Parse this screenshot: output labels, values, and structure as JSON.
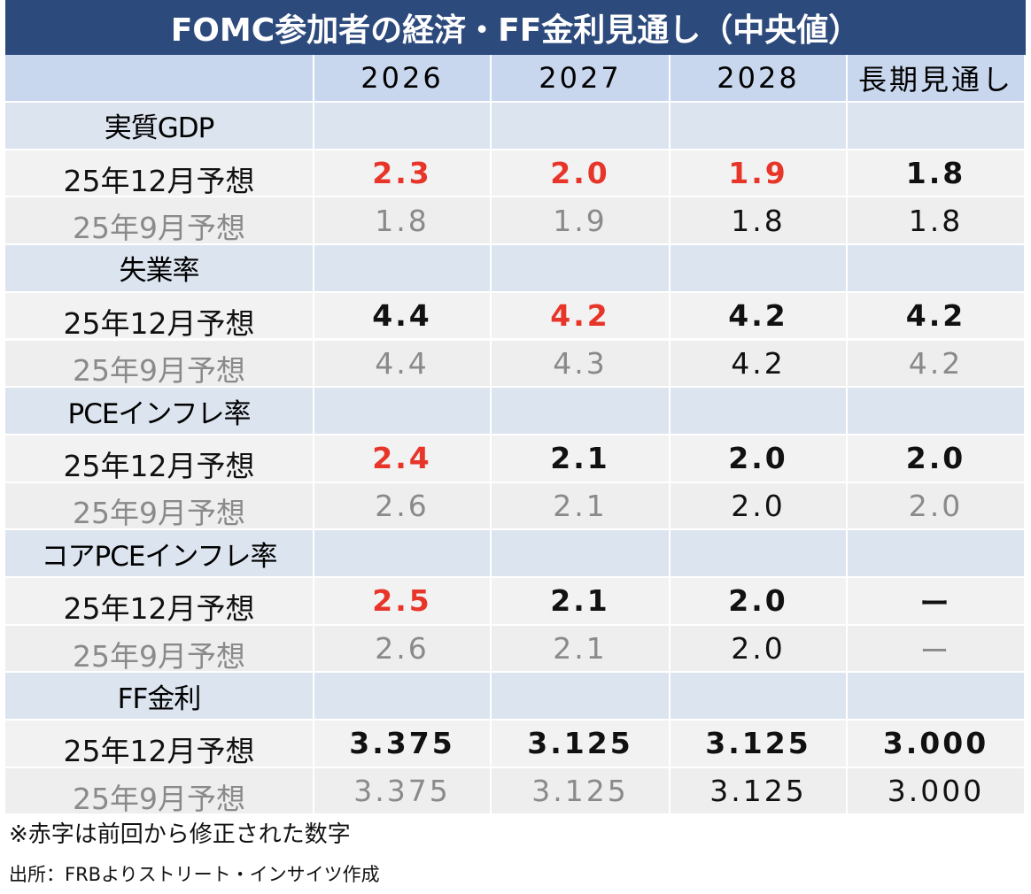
{
  "title": "FOMC参加者の経済・FF金利見通し（中央値）",
  "table": {
    "header": [
      "2026",
      "2027",
      "2028",
      "長期見通し"
    ],
    "sections": [
      {
        "name": "実質GDP",
        "rows": [
          {
            "label": "25年12月予想",
            "label_color": "#111111",
            "bold": true,
            "values": [
              "2.3",
              "2.0",
              "1.9",
              "1.8"
            ],
            "colors": [
              "#e8352a",
              "#e8352a",
              "#e8352a",
              "#111111"
            ]
          },
          {
            "label": "25年9月予想",
            "label_color": "#8a8a8a",
            "bold": false,
            "values": [
              "1.8",
              "1.9",
              "1.8",
              "1.8"
            ],
            "colors": [
              "#8a8a8a",
              "#8a8a8a",
              "#111111",
              "#111111"
            ]
          }
        ]
      },
      {
        "name": "失業率",
        "rows": [
          {
            "label": "25年12月予想",
            "label_color": "#111111",
            "bold": true,
            "values": [
              "4.4",
              "4.2",
              "4.2",
              "4.2"
            ],
            "colors": [
              "#111111",
              "#e8352a",
              "#111111",
              "#111111"
            ]
          },
          {
            "label": "25年9月予想",
            "label_color": "#8a8a8a",
            "bold": false,
            "values": [
              "4.4",
              "4.3",
              "4.2",
              "4.2"
            ],
            "colors": [
              "#8a8a8a",
              "#8a8a8a",
              "#111111",
              "#8a8a8a"
            ]
          }
        ]
      },
      {
        "name": "PCEインフレ率",
        "rows": [
          {
            "label": "25年12月予想",
            "label_color": "#111111",
            "bold": true,
            "values": [
              "2.4",
              "2.1",
              "2.0",
              "2.0"
            ],
            "colors": [
              "#e8352a",
              "#111111",
              "#111111",
              "#111111"
            ]
          },
          {
            "label": "25年9月予想",
            "label_color": "#8a8a8a",
            "bold": false,
            "values": [
              "2.6",
              "2.1",
              "2.0",
              "2.0"
            ],
            "colors": [
              "#8a8a8a",
              "#8a8a8a",
              "#111111",
              "#8a8a8a"
            ]
          }
        ]
      },
      {
        "name": "コアPCEインフレ率",
        "rows": [
          {
            "label": "25年12月予想",
            "label_color": "#111111",
            "bold": true,
            "values": [
              "2.5",
              "2.1",
              "2.0",
              "ー"
            ],
            "colors": [
              "#e8352a",
              "#111111",
              "#111111",
              "#111111"
            ]
          },
          {
            "label": "25年9月予想",
            "label_color": "#8a8a8a",
            "bold": false,
            "values": [
              "2.6",
              "2.1",
              "2.0",
              "ー"
            ],
            "colors": [
              "#8a8a8a",
              "#8a8a8a",
              "#111111",
              "#8a8a8a"
            ]
          }
        ]
      },
      {
        "name": "FF金利",
        "rows": [
          {
            "label": "25年12月予想",
            "label_color": "#111111",
            "bold": true,
            "values": [
              "3.375",
              "3.125",
              "3.125",
              "3.000"
            ],
            "colors": [
              "#111111",
              "#111111",
              "#111111",
              "#111111"
            ]
          },
          {
            "label": "25年9月予想",
            "label_color": "#8a8a8a",
            "bold": false,
            "values": [
              "3.375",
              "3.125",
              "3.125",
              "3.000"
            ],
            "colors": [
              "#8a8a8a",
              "#8a8a8a",
              "#111111",
              "#111111"
            ]
          }
        ]
      }
    ]
  },
  "notes": [
    "※赤字は前回から修正された数字",
    "出所：FRBよりストリート・インサイツ作成"
  ]
}
